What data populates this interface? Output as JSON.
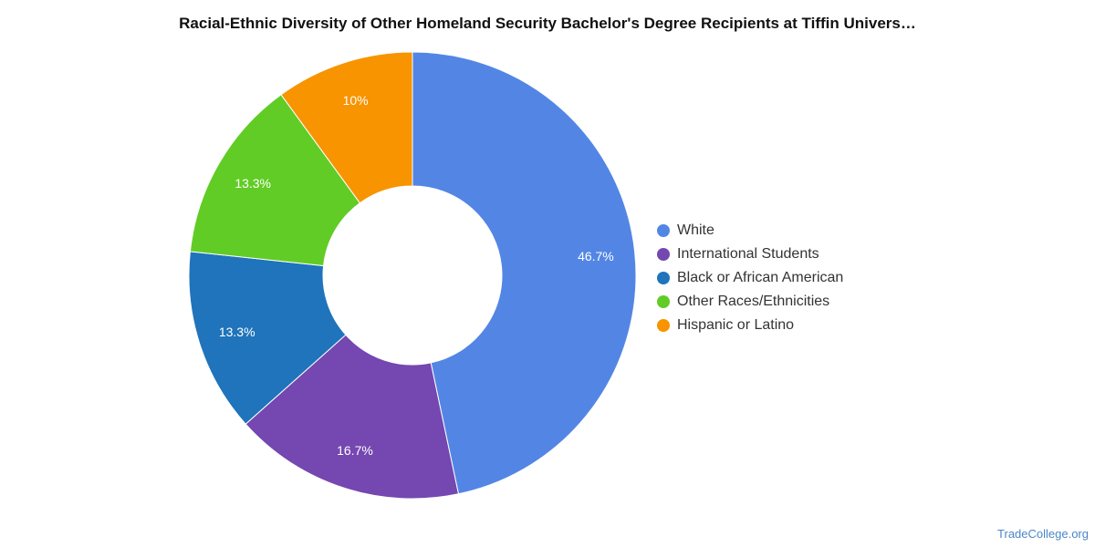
{
  "chart_data": {
    "type": "pie",
    "title": "Racial-Ethnic Diversity of Other Homeland Security Bachelor's Degree Recipients at Tiffin Univers…",
    "legend_position": "right",
    "slices": [
      {
        "name": "White",
        "value": 46.7,
        "label": "46.7%",
        "color": "#5386e4"
      },
      {
        "name": "International Students",
        "value": 16.7,
        "label": "16.7%",
        "color": "#7447b1"
      },
      {
        "name": "Black or African American",
        "value": 13.3,
        "label": "13.3%",
        "color": "#1f74bb"
      },
      {
        "name": "Other Races/Ethnicities",
        "value": 13.3,
        "label": "13.3%",
        "color": "#61cc25"
      },
      {
        "name": "Hispanic or Latino",
        "value": 10.0,
        "label": "10%",
        "color": "#f79400"
      }
    ]
  },
  "footer": {
    "credit": "TradeCollege.org"
  }
}
